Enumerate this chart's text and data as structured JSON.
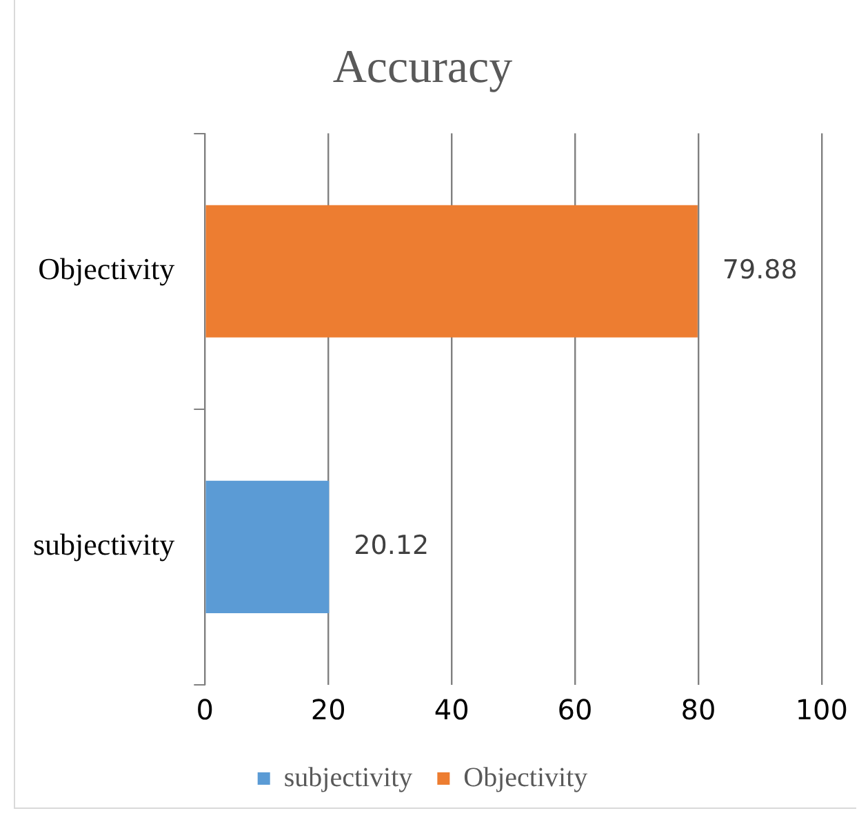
{
  "chart_data": {
    "type": "bar",
    "title": "Accuracy",
    "orientation": "horizontal",
    "categories": [
      "Objectivity",
      "subjectivity"
    ],
    "series": [
      {
        "name": "subjectivity",
        "color": "#5b9bd5",
        "values": [
          null,
          20.12
        ]
      },
      {
        "name": "Objectivity",
        "color": "#ed7d31",
        "values": [
          79.88,
          null
        ]
      }
    ],
    "xlim": [
      0,
      100
    ],
    "xticks": [
      0,
      20,
      40,
      60,
      80,
      100
    ],
    "grid": "x",
    "legend": "bottom",
    "data_labels": true
  }
}
